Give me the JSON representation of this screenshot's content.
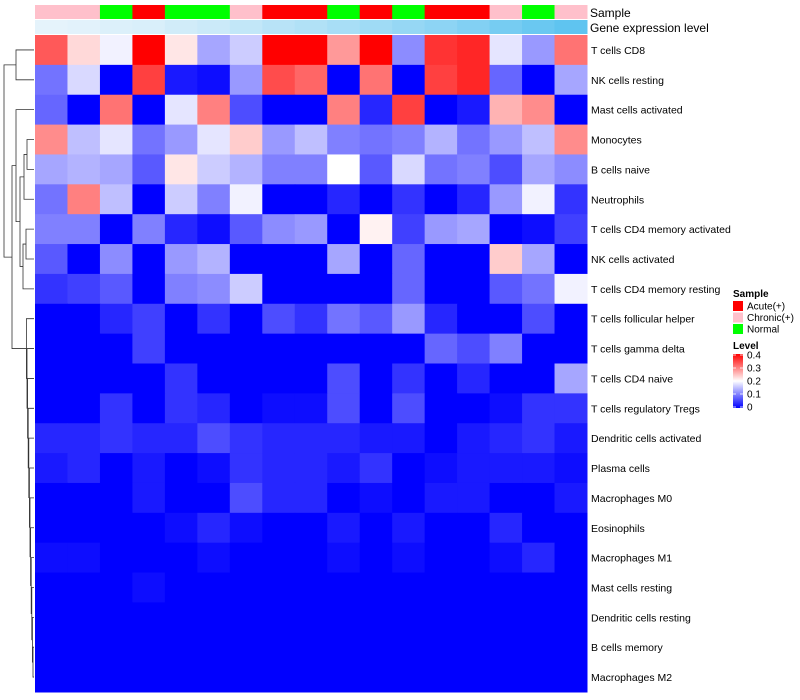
{
  "chart_data": {
    "type": "heatmap",
    "annotation_labels": {
      "sample": "Sample",
      "expression": "Gene expression level"
    },
    "sample_groups": [
      "Chronic(+)",
      "Chronic(+)",
      "Normal",
      "Acute(+)",
      "Normal",
      "Normal",
      "Chronic(+)",
      "Acute(+)",
      "Acute(+)",
      "Normal",
      "Acute(+)",
      "Normal",
      "Acute(+)",
      "Acute(+)",
      "Chronic(+)",
      "Normal",
      "Chronic(+)"
    ],
    "expression_levels": [
      0.02,
      0.04,
      0.08,
      0.1,
      0.16,
      0.2,
      0.26,
      0.33,
      0.38,
      0.44,
      0.5,
      0.56,
      0.62,
      0.7,
      0.78,
      0.86,
      0.94
    ],
    "rows": [
      "T cells CD8",
      "NK cells resting",
      "Mast cells activated",
      "Monocytes",
      "B cells naive",
      "Neutrophils",
      "T cells CD4 memory activated",
      "NK cells activated",
      "T cells CD4 memory resting",
      "T cells follicular helper",
      "T cells gamma delta",
      "T cells CD4 naive",
      "T cells regulatory  Tregs",
      "Dendritic cells activated",
      "Plasma cells",
      "Macrophages M0",
      "Eosinophils",
      "Macrophages M1",
      "Mast cells resting",
      "Dendritic cells resting",
      "B cells memory",
      "Macrophages M2"
    ],
    "values": [
      [
        0.33,
        0.23,
        0.19,
        0.4,
        0.22,
        0.13,
        0.16,
        0.4,
        0.4,
        0.28,
        0.4,
        0.11,
        0.36,
        0.37,
        0.18,
        0.12,
        0.31
      ],
      [
        0.09,
        0.17,
        0.0,
        0.35,
        0.02,
        0.01,
        0.12,
        0.34,
        0.32,
        0.0,
        0.31,
        0.0,
        0.35,
        0.37,
        0.08,
        0.0,
        0.13
      ],
      [
        0.08,
        0.0,
        0.31,
        0.0,
        0.18,
        0.3,
        0.06,
        0.0,
        0.0,
        0.3,
        0.03,
        0.35,
        0.0,
        0.02,
        0.26,
        0.29,
        0.0
      ],
      [
        0.29,
        0.15,
        0.18,
        0.09,
        0.12,
        0.18,
        0.24,
        0.12,
        0.15,
        0.1,
        0.09,
        0.1,
        0.14,
        0.09,
        0.12,
        0.15,
        0.29
      ],
      [
        0.13,
        0.14,
        0.13,
        0.07,
        0.22,
        0.16,
        0.14,
        0.1,
        0.1,
        0.2,
        0.07,
        0.17,
        0.09,
        0.1,
        0.06,
        0.13,
        0.11
      ],
      [
        0.09,
        0.3,
        0.15,
        0.0,
        0.16,
        0.1,
        0.19,
        0.0,
        0.0,
        0.03,
        0.0,
        0.04,
        0.0,
        0.03,
        0.12,
        0.19,
        0.04
      ],
      [
        0.1,
        0.1,
        0.0,
        0.1,
        0.03,
        0.01,
        0.07,
        0.11,
        0.12,
        0.0,
        0.21,
        0.05,
        0.12,
        0.13,
        0.0,
        0.01,
        0.05
      ],
      [
        0.07,
        0.0,
        0.11,
        0.0,
        0.12,
        0.14,
        0.0,
        0.0,
        0.0,
        0.13,
        0.0,
        0.08,
        0.0,
        0.0,
        0.24,
        0.13,
        0.0
      ],
      [
        0.04,
        0.05,
        0.07,
        0.0,
        0.1,
        0.11,
        0.16,
        0.0,
        0.0,
        0.0,
        0.0,
        0.08,
        0.0,
        0.0,
        0.07,
        0.09,
        0.19
      ],
      [
        0.0,
        0.0,
        0.03,
        0.05,
        0.0,
        0.04,
        0.0,
        0.06,
        0.04,
        0.09,
        0.07,
        0.12,
        0.03,
        0.0,
        0.0,
        0.06,
        0.0
      ],
      [
        0.0,
        0.0,
        0.0,
        0.05,
        0.0,
        0.0,
        0.0,
        0.0,
        0.0,
        0.0,
        0.0,
        0.0,
        0.08,
        0.06,
        0.1,
        0.0,
        0.0
      ],
      [
        0.0,
        0.0,
        0.0,
        0.0,
        0.04,
        0.0,
        0.0,
        0.0,
        0.0,
        0.06,
        0.0,
        0.04,
        0.0,
        0.03,
        0.0,
        0.0,
        0.13
      ],
      [
        0.0,
        0.0,
        0.04,
        0.0,
        0.04,
        0.03,
        0.0,
        0.01,
        0.01,
        0.06,
        0.0,
        0.06,
        0.0,
        0.0,
        0.01,
        0.04,
        0.04
      ],
      [
        0.03,
        0.03,
        0.04,
        0.03,
        0.03,
        0.06,
        0.04,
        0.03,
        0.03,
        0.03,
        0.02,
        0.02,
        0.0,
        0.02,
        0.03,
        0.04,
        0.02
      ],
      [
        0.02,
        0.03,
        0.0,
        0.02,
        0.0,
        0.01,
        0.04,
        0.03,
        0.03,
        0.02,
        0.04,
        0.0,
        0.01,
        0.02,
        0.02,
        0.02,
        0.01
      ],
      [
        0.0,
        0.0,
        0.0,
        0.02,
        0.0,
        0.0,
        0.06,
        0.03,
        0.03,
        0.0,
        0.01,
        0.0,
        0.02,
        0.02,
        0.0,
        0.0,
        0.02
      ],
      [
        0.0,
        0.0,
        0.0,
        0.0,
        0.01,
        0.03,
        0.01,
        0.0,
        0.0,
        0.02,
        0.0,
        0.02,
        0.0,
        0.0,
        0.03,
        0.0,
        0.0
      ],
      [
        0.01,
        0.01,
        0.0,
        0.0,
        0.0,
        0.01,
        0.0,
        0.0,
        0.0,
        0.01,
        0.0,
        0.01,
        0.0,
        0.0,
        0.01,
        0.03,
        0.0
      ],
      [
        0.0,
        0.0,
        0.0,
        0.01,
        0.0,
        0.0,
        0.0,
        0.0,
        0.0,
        0.0,
        0.0,
        0.0,
        0.0,
        0.0,
        0.0,
        0.0,
        0.0
      ],
      [
        0.0,
        0.0,
        0.0,
        0.0,
        0.0,
        0.0,
        0.0,
        0.0,
        0.0,
        0.0,
        0.0,
        0.0,
        0.0,
        0.0,
        0.0,
        0.0,
        0.0
      ],
      [
        0.0,
        0.0,
        0.0,
        0.0,
        0.0,
        0.0,
        0.0,
        0.0,
        0.0,
        0.0,
        0.0,
        0.0,
        0.0,
        0.0,
        0.0,
        0.0,
        0.0
      ],
      [
        0.0,
        0.0,
        0.0,
        0.0,
        0.0,
        0.0,
        0.0,
        0.0,
        0.0,
        0.0,
        0.0,
        0.0,
        0.0,
        0.0,
        0.0,
        0.0,
        0.0
      ]
    ],
    "color_scale": {
      "min": 0,
      "max": 0.4,
      "low_color": "#0000ff",
      "mid_color": "#ffffff",
      "high_color": "#ff0000"
    },
    "legend": {
      "sample_title": "Sample",
      "sample_entries": [
        {
          "label": "Acute(+)",
          "color": "#ff0000"
        },
        {
          "label": "Chronic(+)",
          "color": "#ffc0cb"
        },
        {
          "label": "Normal",
          "color": "#00ff00"
        }
      ],
      "level_title": "Level",
      "level_ticks": [
        "0.4",
        "0.3",
        "0.2",
        "0.1",
        "0"
      ],
      "position": "right"
    },
    "expression_colors": {
      "low": "#e8f4fb",
      "high": "#56c1ef"
    }
  }
}
